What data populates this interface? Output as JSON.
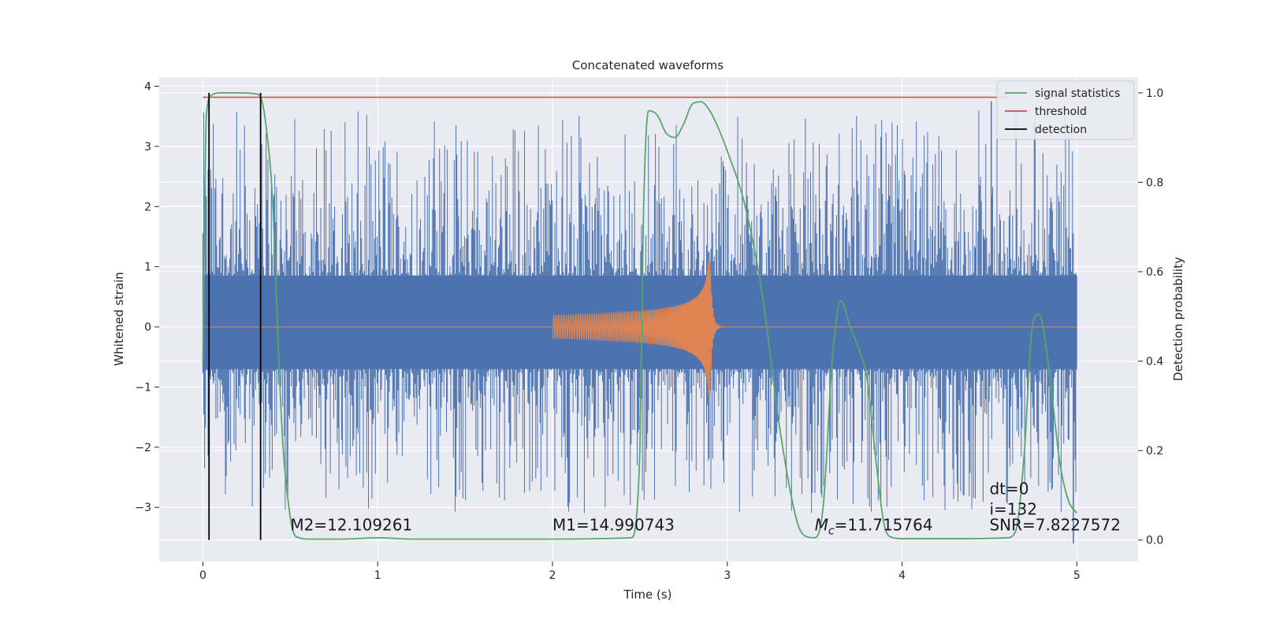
{
  "chart_data": {
    "type": "line",
    "title": "Concatenated waveforms",
    "xlabel": "Time (s)",
    "ylabel": "Whitened strain",
    "y2label": "Detection probability",
    "xlim": [
      -0.25,
      5.35
    ],
    "ylim": [
      -3.9,
      4.15
    ],
    "y2lim": [
      -0.048,
      1.035
    ],
    "x_ticks": [
      0,
      1,
      2,
      3,
      4,
      5
    ],
    "y_ticks": [
      -3,
      -2,
      -1,
      0,
      1,
      2,
      3,
      4
    ],
    "y2_ticks": [
      0.0,
      0.2,
      0.4,
      0.6,
      0.8,
      1.0
    ],
    "x_tick_labels": [
      "0",
      "1",
      "2",
      "3",
      "4",
      "5"
    ],
    "y_tick_labels": [
      "−3",
      "−2",
      "−1",
      "0",
      "1",
      "2",
      "3",
      "4"
    ],
    "y2_tick_labels": [
      "0.0",
      "0.2",
      "0.4",
      "0.6",
      "0.8",
      "1.0"
    ],
    "grid": true,
    "legend_placement": "top-right",
    "legend": [
      "signal statistics",
      "threshold",
      "detection"
    ],
    "colors": {
      "strain": "#4c72b0",
      "waveform": "#dd8452",
      "statistics": "#55a868",
      "threshold": "#c44e52",
      "detection": "#000000",
      "plot_bg": "#eaeaf2",
      "grid": "#ffffff"
    },
    "strain_noise": {
      "x_range": [
        0,
        5
      ],
      "band": [
        -0.7,
        0.85
      ],
      "max": 3.75,
      "min": -3.6
    },
    "waveform_chirp": {
      "start": 2.0,
      "merger": 2.9,
      "peak_amplitude": 1.15,
      "trough": -1.4
    },
    "series": [
      {
        "name": "signal statistics",
        "axis": "right",
        "x": [
          0,
          0.02,
          0.05,
          0.1,
          0.2,
          0.3,
          0.33,
          0.36,
          0.4,
          0.42,
          0.44,
          0.46,
          0.5,
          0.52,
          0.55,
          0.6,
          0.8,
          1.0,
          1.2,
          2.0,
          2.45,
          2.5,
          2.52,
          2.55,
          2.6,
          2.65,
          2.7,
          2.75,
          2.8,
          2.85,
          2.9,
          2.95,
          3.0,
          3.1,
          3.2,
          3.3,
          3.4,
          3.45,
          3.5,
          3.55,
          3.6,
          3.65,
          3.7,
          3.75,
          3.8,
          3.85,
          3.9,
          3.95,
          4.0,
          4.2,
          4.4,
          4.6,
          4.65,
          4.7,
          4.74,
          4.78,
          4.8,
          4.85,
          4.9,
          4.95,
          5.0
        ],
        "y": [
          0.4,
          0.95,
          0.995,
          1.0,
          1.0,
          0.998,
          0.99,
          0.93,
          0.75,
          0.55,
          0.35,
          0.2,
          0.05,
          0.015,
          0.005,
          0.002,
          0.002,
          0.005,
          0.002,
          0.002,
          0.005,
          0.2,
          0.72,
          0.96,
          0.95,
          0.91,
          0.9,
          0.93,
          0.975,
          0.98,
          0.96,
          0.92,
          0.87,
          0.75,
          0.55,
          0.25,
          0.04,
          0.008,
          0.005,
          0.08,
          0.4,
          0.535,
          0.48,
          0.43,
          0.36,
          0.18,
          0.03,
          0.005,
          0.003,
          0.003,
          0.003,
          0.005,
          0.02,
          0.2,
          0.46,
          0.505,
          0.49,
          0.35,
          0.18,
          0.09,
          0.06
        ]
      },
      {
        "name": "threshold",
        "axis": "right",
        "x": [
          0,
          4.6
        ],
        "y": [
          0.99,
          0.99
        ]
      }
    ],
    "detections": [
      0.035,
      0.33
    ],
    "annotations": [
      {
        "text": "M2=12.109261",
        "x": 0.5,
        "y": -3.38
      },
      {
        "text": "M1=14.990743",
        "x": 2.0,
        "y": -3.38
      },
      {
        "text": "M",
        "sub": "c",
        "rest": "=11.715764",
        "x": 3.5,
        "y": -3.38
      },
      {
        "text": "dt=0",
        "x": 4.5,
        "y": -2.78
      },
      {
        "text": "i=132",
        "x": 4.5,
        "y": -3.12
      },
      {
        "text": "SNR=7.8227572",
        "x": 4.5,
        "y": -3.38
      }
    ]
  }
}
